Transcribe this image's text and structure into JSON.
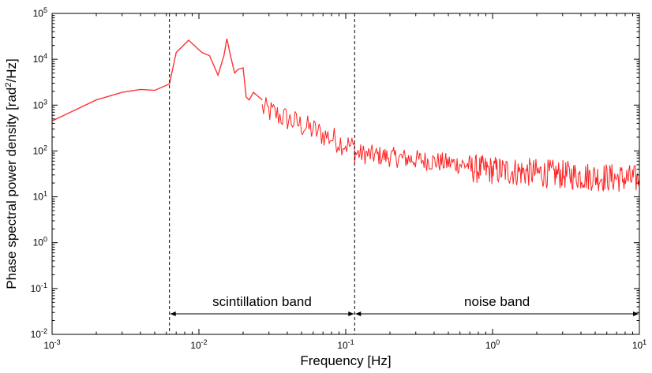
{
  "chart_data": {
    "type": "line",
    "title": "",
    "xlabel": "Frequency [Hz]",
    "ylabel": "Phase spectral power density [rad²/Hz]",
    "xscale": "log",
    "yscale": "log",
    "xlim": [
      0.001,
      10
    ],
    "ylim": [
      0.01,
      100000
    ],
    "grid": false,
    "series_color": "#ff3333",
    "x_ticks": [
      {
        "base": "10",
        "exp": "-3"
      },
      {
        "base": "10",
        "exp": "-2"
      },
      {
        "base": "10",
        "exp": "-1"
      },
      {
        "base": "10",
        "exp": "0"
      },
      {
        "base": "10",
        "exp": "1"
      }
    ],
    "y_ticks": [
      {
        "base": "10",
        "exp": "-2"
      },
      {
        "base": "10",
        "exp": "-1"
      },
      {
        "base": "10",
        "exp": "0"
      },
      {
        "base": "10",
        "exp": "1"
      },
      {
        "base": "10",
        "exp": "2"
      },
      {
        "base": "10",
        "exp": "3"
      },
      {
        "base": "10",
        "exp": "4"
      },
      {
        "base": "10",
        "exp": "5"
      }
    ],
    "series": [
      {
        "x": [
          0.001,
          0.002,
          0.003,
          0.004,
          0.005,
          0.0063,
          0.007,
          0.0085,
          0.0105,
          0.0118,
          0.0135,
          0.0148,
          0.0155,
          0.0165,
          0.0175,
          0.0185,
          0.02,
          0.021,
          0.022,
          0.0235,
          0.025,
          0.027
        ],
        "y": [
          450,
          1300,
          1900,
          2200,
          2100,
          2900,
          14000,
          26000,
          14000,
          12000,
          4500,
          12000,
          28000,
          11000,
          5000,
          6000,
          6500,
          1500,
          1300,
          1900,
          1600,
          1300
        ]
      }
    ],
    "noisy_segments": [
      {
        "x_start": 0.027,
        "x_end": 0.115,
        "y_start": 1100,
        "y_end": 150,
        "spread_log10": 0.35
      },
      {
        "x_start": 0.115,
        "x_end": 0.7,
        "y_start": 110,
        "y_end": 60,
        "spread_log10": 0.28
      },
      {
        "x_start": 0.7,
        "x_end": 10,
        "y_start": 55,
        "y_end": 32,
        "spread_log10": 0.4
      }
    ],
    "bands": [
      {
        "label": "scintillation band",
        "x_start": 0.0063,
        "x_end": 0.115
      },
      {
        "label": "noise band",
        "x_start": 0.115,
        "x_end": 10
      }
    ],
    "boundary_lines_x": [
      0.0063,
      0.115
    ]
  }
}
